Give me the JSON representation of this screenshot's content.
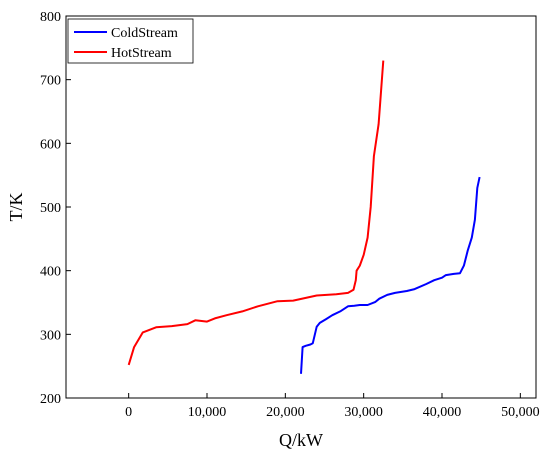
{
  "chart_data": {
    "type": "line",
    "title": "",
    "xlabel": "Q/kW",
    "ylabel": "T/K",
    "xlim": [
      -8000,
      52000
    ],
    "ylim": [
      200,
      800
    ],
    "xticks": [
      0,
      10000,
      20000,
      30000,
      40000,
      50000
    ],
    "xtick_labels": [
      "0",
      "10,000",
      "20,000",
      "30,000",
      "40,000",
      "50,000"
    ],
    "yticks": [
      200,
      300,
      400,
      500,
      600,
      700,
      800
    ],
    "ytick_labels": [
      "200",
      "300",
      "400",
      "500",
      "600",
      "700",
      "800"
    ],
    "grid": false,
    "legend_position": "top-left",
    "series": [
      {
        "name": "ColdStream",
        "color": "#0000ff",
        "points": [
          [
            22000,
            238
          ],
          [
            22200,
            280
          ],
          [
            22600,
            282
          ],
          [
            23200,
            284
          ],
          [
            23500,
            286
          ],
          [
            24000,
            312
          ],
          [
            24400,
            318
          ],
          [
            25200,
            324
          ],
          [
            26000,
            330
          ],
          [
            27000,
            336
          ],
          [
            28000,
            344
          ],
          [
            28800,
            345
          ],
          [
            29500,
            346
          ],
          [
            30500,
            346
          ],
          [
            31500,
            351
          ],
          [
            32000,
            356
          ],
          [
            33000,
            362
          ],
          [
            34000,
            365
          ],
          [
            35500,
            368
          ],
          [
            36500,
            371
          ],
          [
            38000,
            379
          ],
          [
            39000,
            385
          ],
          [
            40000,
            389
          ],
          [
            40500,
            393
          ],
          [
            41500,
            395
          ],
          [
            42300,
            396
          ],
          [
            42800,
            408
          ],
          [
            43300,
            432
          ],
          [
            43800,
            452
          ],
          [
            44200,
            480
          ],
          [
            44500,
            530
          ],
          [
            44800,
            547
          ]
        ]
      },
      {
        "name": "HotStream",
        "color": "#ff0000",
        "points": [
          [
            0,
            252
          ],
          [
            700,
            280
          ],
          [
            1800,
            303
          ],
          [
            3500,
            311
          ],
          [
            5500,
            313
          ],
          [
            7500,
            316
          ],
          [
            8500,
            322
          ],
          [
            10000,
            320
          ],
          [
            11000,
            325
          ],
          [
            12500,
            330
          ],
          [
            14500,
            336
          ],
          [
            16500,
            344
          ],
          [
            19000,
            352
          ],
          [
            21000,
            353
          ],
          [
            24000,
            361
          ],
          [
            26500,
            363
          ],
          [
            28000,
            365
          ],
          [
            28700,
            370
          ],
          [
            29000,
            385
          ],
          [
            29100,
            400
          ],
          [
            29500,
            408
          ],
          [
            30000,
            425
          ],
          [
            30500,
            452
          ],
          [
            30900,
            500
          ],
          [
            31300,
            580
          ],
          [
            31900,
            630
          ],
          [
            32500,
            730
          ]
        ]
      }
    ]
  }
}
